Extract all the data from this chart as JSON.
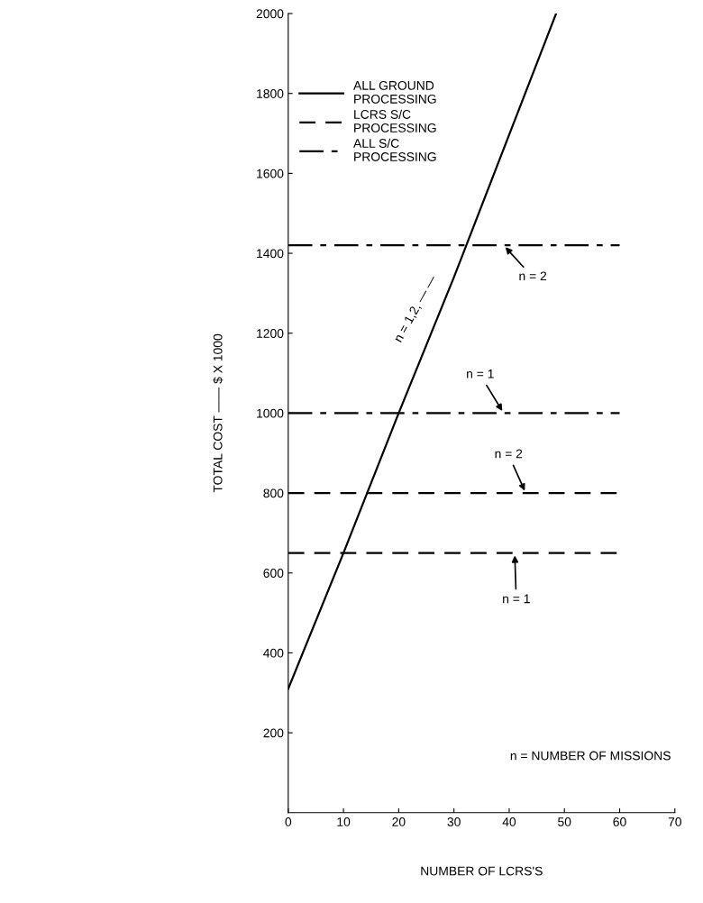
{
  "chart_data": {
    "type": "line",
    "xlabel": "NUMBER OF LCRS'S",
    "ylabel": "TOTAL COST —— $ X 1000",
    "xlim": [
      0,
      70
    ],
    "xticks": [
      0,
      10,
      20,
      30,
      40,
      50,
      60,
      70
    ],
    "ylim": [
      0,
      2000
    ],
    "yticks": [
      200,
      400,
      600,
      800,
      1000,
      1200,
      1400,
      1600,
      1800,
      2000
    ],
    "grid": false,
    "legend": "top left",
    "color": "#000000",
    "series": [
      {
        "name": "ALL GROUND\nPROCESSING",
        "line_style": "solid",
        "x": [
          0,
          10,
          20,
          30,
          48.5
        ],
        "values": [
          310,
          650,
          1000,
          1340,
          2000
        ]
      },
      {
        "name": "LCRS S/C\nPROCESSING",
        "line_style": "dashed",
        "x": [
          0,
          60
        ],
        "values": [
          650,
          650
        ]
      },
      {
        "line_style": "dashed",
        "x": [
          0,
          60
        ],
        "values": [
          800,
          800
        ]
      },
      {
        "name": "ALL S/C\nPROCESSING",
        "line_style": "dashdot",
        "x": [
          0,
          60
        ],
        "values": [
          1000,
          1000
        ]
      },
      {
        "line_style": "dashdot",
        "x": [
          0,
          60
        ],
        "values": [
          1420,
          1420
        ]
      }
    ],
    "annotations": [
      {
        "text": "n = 2",
        "x": 39,
        "y": 1420
      },
      {
        "text": "n = 1",
        "x": 39,
        "y": 1000
      },
      {
        "text": "n = 2",
        "x": 43,
        "y": 800
      },
      {
        "text": "n = 1",
        "x": 41,
        "y": 650
      },
      "n = 1,2, — —",
      "n = NUMBER OF MISSIONS"
    ]
  }
}
